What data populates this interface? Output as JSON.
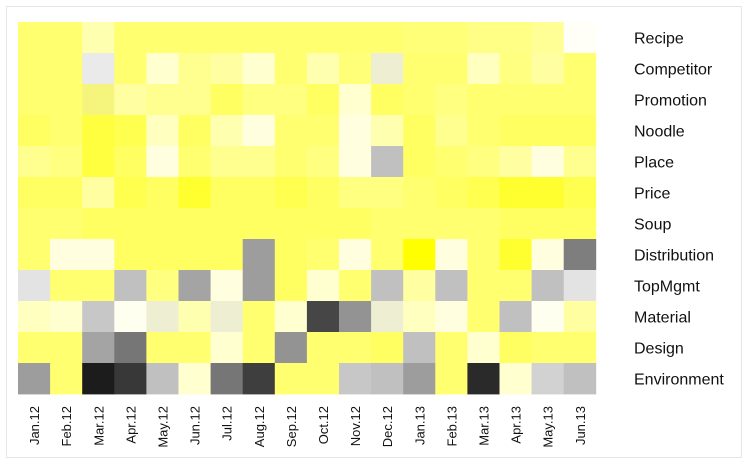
{
  "chart_data": {
    "type": "heatmap",
    "title": "",
    "xlabel": "",
    "ylabel": "",
    "columns": [
      "Jan.12",
      "Feb.12",
      "Mar.12",
      "Apr.12",
      "May.12",
      "Jun.12",
      "Jul.12",
      "Aug.12",
      "Sep.12",
      "Oct.12",
      "Nov.12",
      "Dec.12",
      "Jan.13",
      "Feb.13",
      "Mar.13",
      "Apr.13",
      "May.13",
      "Jun.13"
    ],
    "rows": [
      "Recipe",
      "Competitor",
      "Promotion",
      "Noodle",
      "Place",
      "Price",
      "Soup",
      "Distribution",
      "TopMgmt",
      "Material",
      "Design",
      "Environment"
    ],
    "value_scale": "0 = black, 0.5 = grey, 1 = yellow; values above 1 fade toward white",
    "colors": {
      "low": "#000000",
      "mid": "#8c8c8c",
      "high": "#ffff00",
      "peak": "#ffffff"
    },
    "values": [
      [
        1.44,
        1.44,
        1.69,
        1.44,
        1.44,
        1.44,
        1.44,
        1.44,
        1.44,
        1.44,
        1.44,
        1.44,
        1.47,
        1.47,
        1.52,
        1.52,
        1.59,
        1.97
      ],
      [
        1.44,
        1.44,
        0.77,
        1.44,
        1.81,
        1.56,
        1.63,
        1.81,
        1.44,
        1.69,
        1.47,
        0.8,
        1.44,
        1.44,
        1.75,
        1.5,
        1.63,
        1.44
      ],
      [
        1.44,
        1.44,
        0.88,
        1.63,
        1.56,
        1.56,
        1.38,
        1.5,
        1.5,
        1.38,
        1.81,
        1.38,
        1.44,
        1.5,
        1.44,
        1.44,
        1.44,
        1.44
      ],
      [
        1.38,
        1.44,
        1.25,
        1.31,
        1.75,
        1.38,
        1.69,
        1.88,
        1.44,
        1.44,
        1.88,
        1.69,
        1.38,
        1.56,
        1.44,
        1.38,
        1.38,
        1.38
      ],
      [
        1.56,
        1.5,
        1.25,
        1.38,
        1.88,
        1.44,
        1.56,
        1.56,
        1.44,
        1.5,
        1.88,
        0.65,
        1.38,
        1.44,
        1.5,
        1.63,
        1.88,
        1.56
      ],
      [
        1.38,
        1.38,
        1.63,
        1.31,
        1.38,
        1.19,
        1.38,
        1.38,
        1.31,
        1.38,
        1.5,
        1.5,
        1.44,
        1.38,
        1.31,
        1.19,
        1.19,
        1.31
      ],
      [
        1.44,
        1.44,
        1.38,
        1.38,
        1.38,
        1.38,
        1.38,
        1.38,
        1.38,
        1.38,
        1.38,
        1.44,
        1.44,
        1.44,
        1.44,
        1.38,
        1.38,
        1.38
      ],
      [
        1.44,
        1.88,
        1.88,
        1.38,
        1.38,
        1.38,
        1.38,
        0.55,
        1.38,
        1.44,
        1.88,
        1.44,
        1.0,
        1.88,
        1.44,
        1.19,
        1.88,
        0.45
      ],
      [
        0.75,
        1.44,
        1.44,
        0.65,
        1.5,
        0.57,
        1.88,
        0.55,
        1.38,
        1.81,
        1.44,
        0.65,
        1.63,
        0.65,
        1.44,
        1.44,
        0.65,
        0.75
      ],
      [
        1.75,
        1.81,
        0.67,
        1.94,
        0.8,
        1.69,
        0.8,
        1.44,
        1.81,
        0.25,
        0.52,
        0.8,
        1.75,
        1.88,
        1.44,
        0.65,
        1.94,
        1.63
      ],
      [
        1.44,
        1.44,
        0.57,
        0.42,
        1.44,
        1.44,
        1.81,
        1.44,
        0.52,
        1.44,
        1.44,
        1.38,
        0.65,
        1.44,
        1.81,
        1.38,
        1.44,
        1.44
      ],
      [
        0.55,
        1.44,
        0.1,
        0.2,
        0.65,
        1.81,
        0.42,
        0.22,
        1.44,
        1.44,
        0.67,
        0.65,
        0.55,
        1.44,
        0.15,
        1.81,
        0.7,
        0.65
      ]
    ]
  }
}
